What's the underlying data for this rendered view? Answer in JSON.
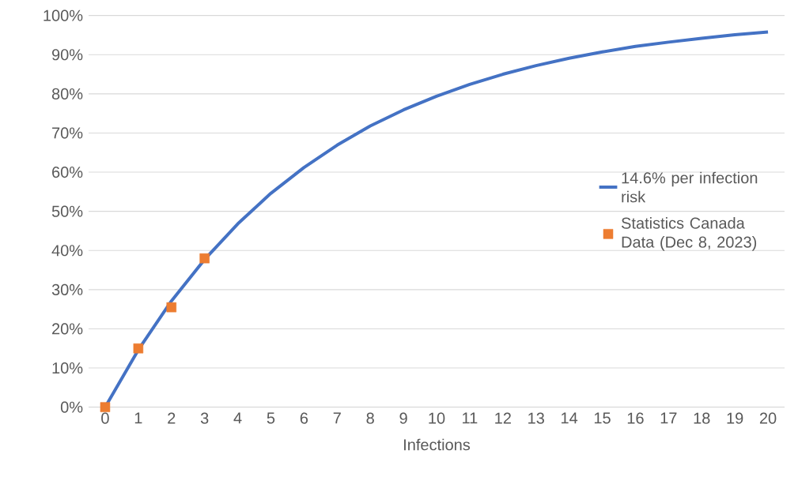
{
  "chart_data": {
    "type": "line",
    "xlabel": "Infections",
    "categories": [
      "0",
      "1",
      "2",
      "3",
      "4",
      "5",
      "6",
      "7",
      "8",
      "9",
      "10",
      "11",
      "12",
      "13",
      "14",
      "15",
      "16",
      "17",
      "18",
      "19",
      "20"
    ],
    "series": [
      {
        "name": "14.6% per infection risk",
        "type": "line",
        "color": "#4472c4",
        "values": [
          0,
          14.6,
          27.1,
          37.7,
          46.8,
          54.6,
          61.2,
          66.9,
          71.8,
          75.9,
          79.4,
          82.4,
          85,
          87.2,
          89.1,
          90.7,
          92.1,
          93.2,
          94.2,
          95.1,
          95.8
        ]
      },
      {
        "name": "Statistics Canada Data (Dec 8, 2023)",
        "type": "scatter",
        "color": "#ed7d31",
        "marker": "square",
        "x": [
          "0",
          "1",
          "2",
          "3"
        ],
        "values": [
          0,
          15,
          25.5,
          38
        ]
      }
    ],
    "ylim": [
      0,
      100
    ],
    "yticks": [
      {
        "value": 0,
        "label": "0%"
      },
      {
        "value": 10,
        "label": "10%"
      },
      {
        "value": 20,
        "label": "20%"
      },
      {
        "value": 30,
        "label": "30%"
      },
      {
        "value": 40,
        "label": "40%"
      },
      {
        "value": 50,
        "label": "50%"
      },
      {
        "value": 60,
        "label": "60%"
      },
      {
        "value": 70,
        "label": "70%"
      },
      {
        "value": 80,
        "label": "80%"
      },
      {
        "value": 90,
        "label": "90%"
      },
      {
        "value": 100,
        "label": "100%"
      }
    ],
    "grid": "y",
    "legend": "right"
  }
}
